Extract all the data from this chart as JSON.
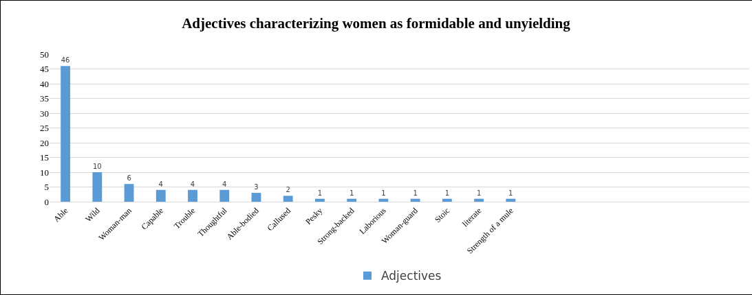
{
  "chart_data": {
    "type": "bar",
    "title": "Adjectives characterizing women as formidable and unyielding",
    "categories": [
      "Able",
      "Wild",
      "Woman-man",
      "Capable",
      "Trouble",
      "Thoughtful",
      "Able-bodied",
      "Callused",
      "Pesky",
      "Strong-backed",
      "Laborious",
      "Woman-guard",
      "Stoic",
      "literate",
      "Strength of a mule",
      null,
      null,
      null,
      null,
      null,
      null,
      null
    ],
    "series": [
      {
        "name": "Adjectives",
        "color": "#5b9bd5",
        "values": [
          46,
          10,
          6,
          4,
          4,
          4,
          3,
          2,
          1,
          1,
          1,
          1,
          1,
          1,
          1,
          null,
          null,
          null,
          null,
          null,
          null,
          null
        ]
      }
    ],
    "ylim": [
      0,
      50
    ],
    "yticks": [
      0,
      5,
      10,
      15,
      20,
      25,
      30,
      35,
      40,
      45,
      50
    ],
    "grid": "y",
    "legend": "bottom",
    "data_labels": true
  }
}
